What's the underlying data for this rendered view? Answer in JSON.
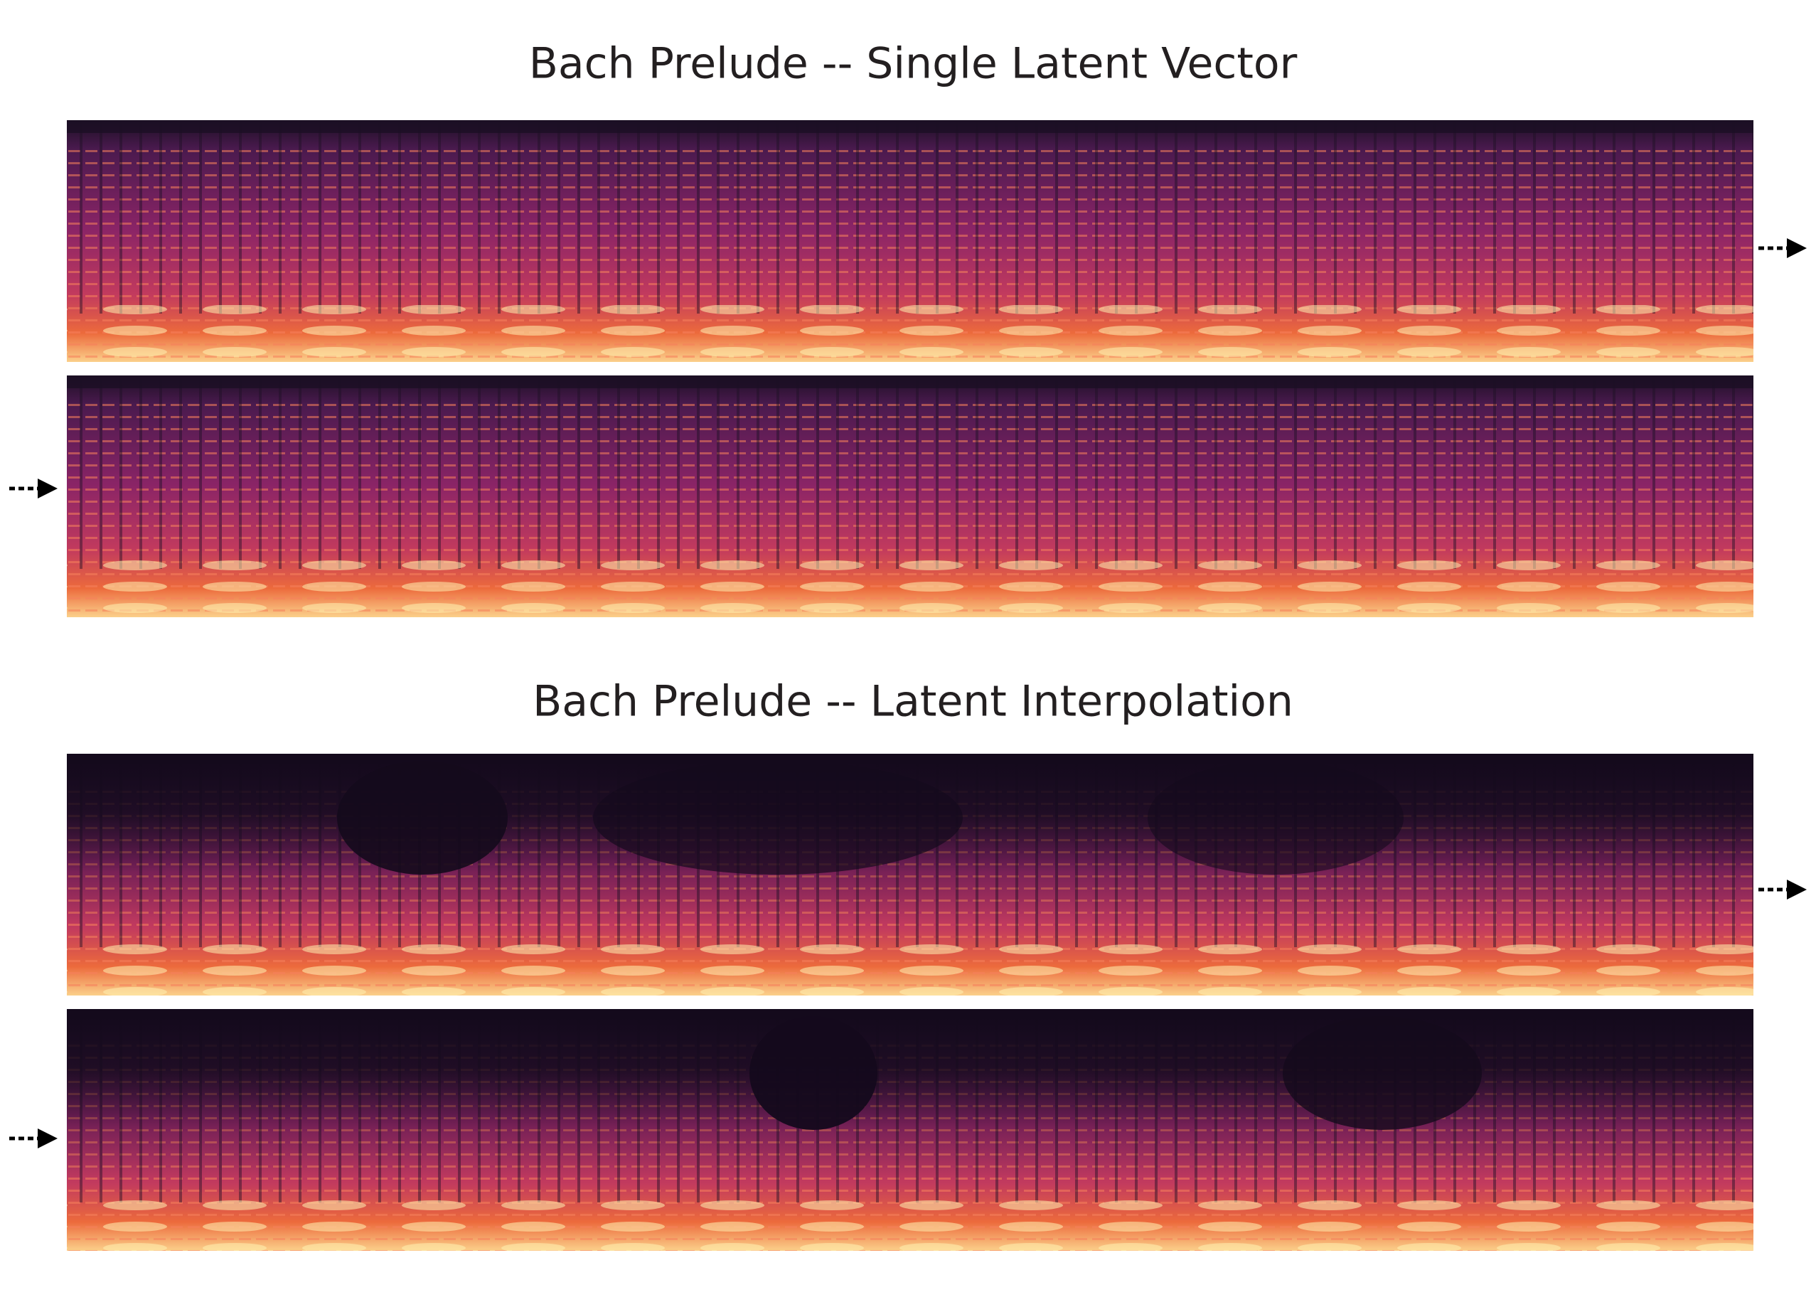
{
  "sections": [
    {
      "title": "Bach Prelude -- Single Latent Vector"
    },
    {
      "title": "Bach Prelude -- Latent Interpolation"
    }
  ]
}
